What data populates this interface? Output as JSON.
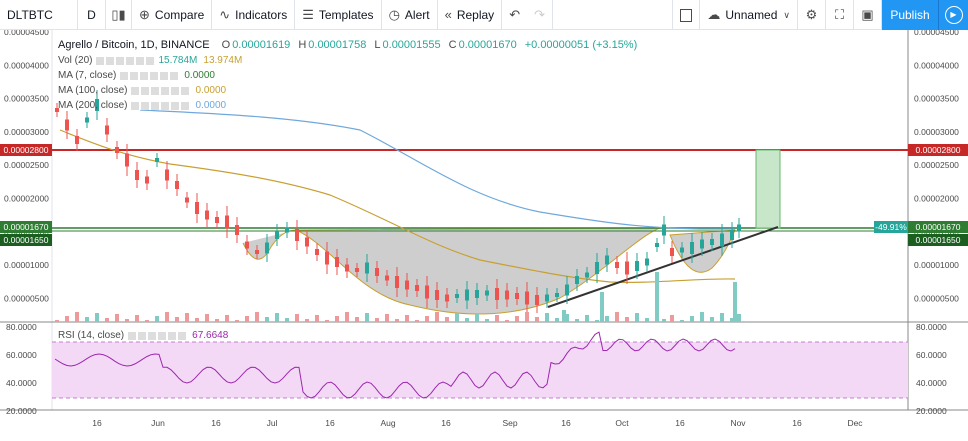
{
  "toolbar": {
    "symbol": "DLTBTC",
    "interval": "D",
    "compare_label": "Compare",
    "indicators_label": "Indicators",
    "templates_label": "Templates",
    "alert_label": "Alert",
    "replay_label": "Replay",
    "layout_name": "Unnamed",
    "publish_label": "Publish"
  },
  "legend": {
    "title": "Agrello / Bitcoin, 1D, BINANCE",
    "open_label": "O",
    "open": "0.00001619",
    "high_label": "H",
    "high": "0.00001758",
    "low_label": "L",
    "low": "0.00001555",
    "close_label": "C",
    "close": "0.00001670",
    "change": "+0.00000051 (+3.15%)",
    "vol_label": "Vol (20)",
    "vol1": "15.784M",
    "vol2": "13.974M",
    "ma7_label": "MA (7, close)",
    "ma7": "0.0000",
    "ma100_label": "MA (100, close)",
    "ma100": "0.0000",
    "ma200_label": "MA (200, close)",
    "ma200": "0.0000",
    "rsi_label": "RSI (14, close)",
    "rsi": "67.6648"
  },
  "price_axis": [
    "0.00004500",
    "0.00004000",
    "0.00003500",
    "0.00003000",
    "0.00002500",
    "0.00002000",
    "0.00001500",
    "0.00001000",
    "0.00000500"
  ],
  "price_tags": {
    "resistance": "0.00002800",
    "current": "0.00001670",
    "support": "0.00001650",
    "percent": "-49.91%"
  },
  "rsi_axis": [
    "80.0000",
    "60.0000",
    "40.0000",
    "20.0000"
  ],
  "time_axis": [
    "16",
    "Jun",
    "16",
    "Jul",
    "16",
    "Aug",
    "16",
    "Sep",
    "16",
    "Oct",
    "16",
    "Nov",
    "16",
    "Dec"
  ],
  "colors": {
    "up": "#26a69a",
    "down": "#ef5350",
    "ma7": "#2e7d32",
    "ma100": "#c8a032",
    "ma200": "#6fa8dc",
    "resistance": "#c62828",
    "support": "#2e7d32",
    "rsi": "#9c27b0",
    "rsi_band": "#f3d9f5",
    "accent": "#2196f3"
  }
}
